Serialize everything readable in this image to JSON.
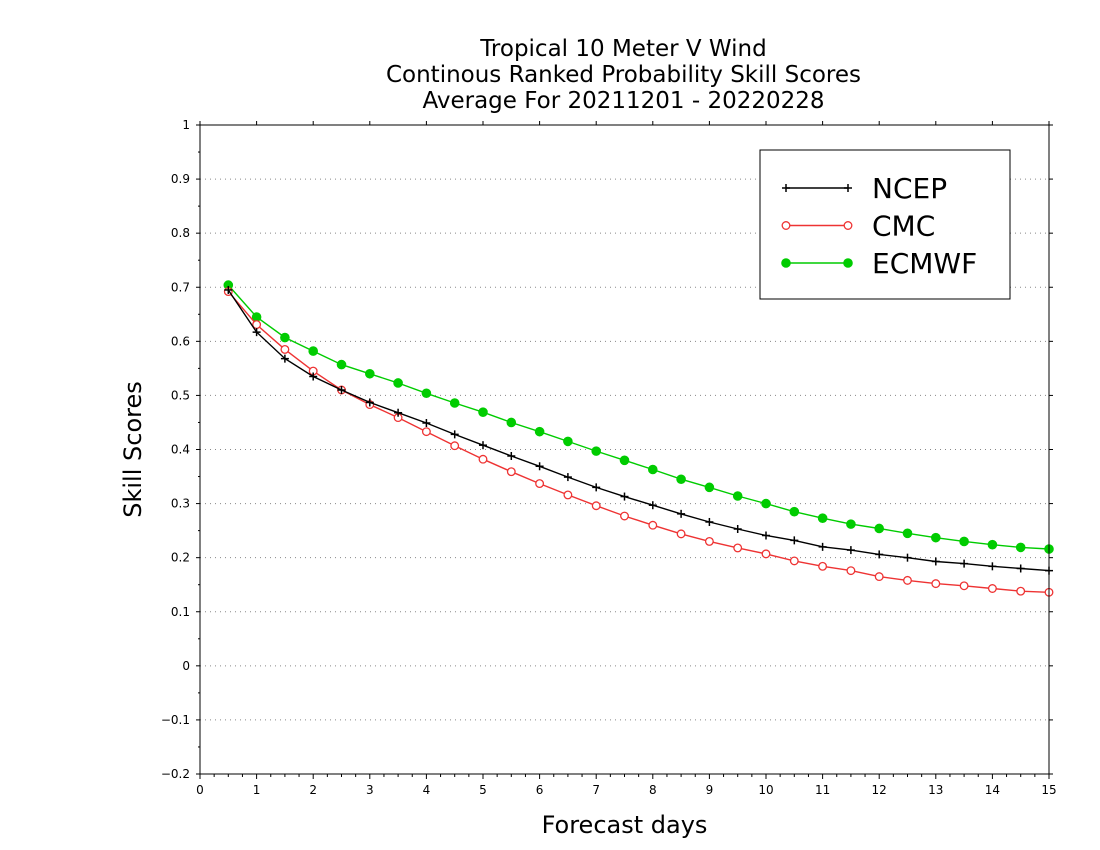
{
  "chart_data": {
    "type": "line",
    "title": [
      "Tropical 10 Meter V Wind",
      "Continous Ranked Probability Skill Scores",
      "Average For 20211201 - 20220228"
    ],
    "xlabel": "Forecast days",
    "ylabel": "Skill Scores",
    "xlim": [
      0,
      15
    ],
    "ylim": [
      -0.2,
      1
    ],
    "x_ticks": [
      "0",
      "1",
      "2",
      "3",
      "4",
      "5",
      "6",
      "7",
      "8",
      "9",
      "10",
      "11",
      "12",
      "13",
      "14",
      "15"
    ],
    "y_ticks": [
      "−0.2",
      "−0.1",
      "0",
      "0.1",
      "0.2",
      "0.3",
      "0.4",
      "0.5",
      "0.6",
      "0.7",
      "0.8",
      "0.9",
      "1"
    ],
    "grid": "horizontal dotted",
    "legend_position": "top-right",
    "x": [
      0.5,
      1,
      1.5,
      2,
      2.5,
      3,
      3.5,
      4,
      4.5,
      5,
      5.5,
      6,
      6.5,
      7,
      7.5,
      8,
      8.5,
      9,
      9.5,
      10,
      10.5,
      11,
      11.5,
      12,
      12.5,
      13,
      13.5,
      14,
      14.5,
      15
    ],
    "series": [
      {
        "name": "NCEP",
        "color": "#000000",
        "marker": "plus",
        "values": [
          0.695,
          0.617,
          0.568,
          0.535,
          0.51,
          0.487,
          0.468,
          0.449,
          0.428,
          0.408,
          0.388,
          0.369,
          0.349,
          0.33,
          0.313,
          0.297,
          0.281,
          0.266,
          0.253,
          0.241,
          0.232,
          0.22,
          0.214,
          0.206,
          0.2,
          0.193,
          0.189,
          0.184,
          0.18,
          0.176
        ]
      },
      {
        "name": "CMC",
        "color": "#ee3333",
        "marker": "open-circle",
        "values": [
          0.692,
          0.631,
          0.585,
          0.545,
          0.51,
          0.483,
          0.459,
          0.433,
          0.407,
          0.382,
          0.359,
          0.337,
          0.316,
          0.296,
          0.277,
          0.26,
          0.244,
          0.23,
          0.218,
          0.207,
          0.194,
          0.184,
          0.176,
          0.165,
          0.158,
          0.152,
          0.148,
          0.143,
          0.138,
          0.136
        ]
      },
      {
        "name": "ECMWF",
        "color": "#00cc00",
        "marker": "filled-circle",
        "values": [
          0.704,
          0.645,
          0.607,
          0.582,
          0.557,
          0.54,
          0.523,
          0.504,
          0.486,
          0.469,
          0.45,
          0.433,
          0.415,
          0.397,
          0.38,
          0.363,
          0.345,
          0.33,
          0.314,
          0.3,
          0.285,
          0.273,
          0.262,
          0.254,
          0.245,
          0.237,
          0.23,
          0.224,
          0.219,
          0.216
        ]
      }
    ]
  }
}
